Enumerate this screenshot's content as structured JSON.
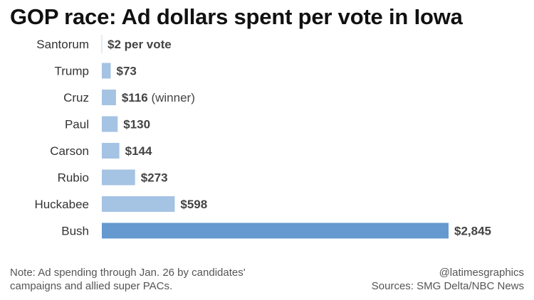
{
  "title": "GOP race: Ad dollars spent per vote in Iowa",
  "note": {
    "line1": "Note:  Ad spending through Jan. 26 by candidates'",
    "line2": "campaigns and allied super PACs."
  },
  "credit": "@latimesgraphics",
  "source": "Sources: SMG Delta/NBC News",
  "colors": {
    "bar": "#a5c3e3",
    "highlight": "#6699d0",
    "baseline": "#c8d8ea"
  },
  "chart_data": {
    "type": "bar",
    "orientation": "horizontal",
    "title": "GOP race: Ad dollars spent per vote in Iowa",
    "categories": [
      "Santorum",
      "Trump",
      "Cruz",
      "Paul",
      "Carson",
      "Rubio",
      "Huckabee",
      "Bush"
    ],
    "values": [
      2,
      73,
      116,
      130,
      144,
      273,
      598,
      2845
    ],
    "value_labels": [
      "$2 per vote",
      "$73",
      "$116",
      "$130",
      "$144",
      "$273",
      "$598",
      "$2,845"
    ],
    "value_notes": [
      "",
      "",
      "(winner)",
      "",
      "",
      "",
      "",
      ""
    ],
    "highlight_category": "Bush",
    "xlim": [
      0,
      2845
    ],
    "grid": false,
    "legend": "none"
  }
}
